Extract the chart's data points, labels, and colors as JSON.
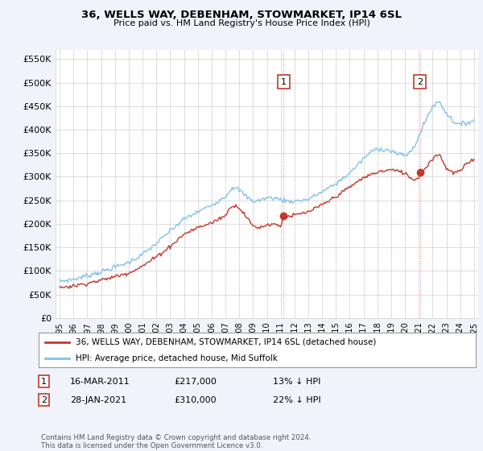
{
  "title": "36, WELLS WAY, DEBENHAM, STOWMARKET, IP14 6SL",
  "subtitle": "Price paid vs. HM Land Registry's House Price Index (HPI)",
  "ylabel_ticks": [
    "£0",
    "£50K",
    "£100K",
    "£150K",
    "£200K",
    "£250K",
    "£300K",
    "£350K",
    "£400K",
    "£450K",
    "£500K",
    "£550K"
  ],
  "ytick_vals": [
    0,
    50000,
    100000,
    150000,
    200000,
    250000,
    300000,
    350000,
    400000,
    450000,
    500000,
    550000
  ],
  "ylim": [
    0,
    570000
  ],
  "xlim_start": 1994.7,
  "xlim_end": 2025.3,
  "xtick_years": [
    1995,
    1996,
    1997,
    1998,
    1999,
    2000,
    2001,
    2002,
    2003,
    2004,
    2005,
    2006,
    2007,
    2008,
    2009,
    2010,
    2011,
    2012,
    2013,
    2014,
    2015,
    2016,
    2017,
    2018,
    2019,
    2020,
    2021,
    2022,
    2023,
    2024,
    2025
  ],
  "hpi_color": "#85c1e8",
  "price_color": "#c0392b",
  "marker1_x": 2011.21,
  "marker1_y": 217000,
  "marker2_x": 2021.08,
  "marker2_y": 310000,
  "vline1_x": 2011.21,
  "vline2_x": 2021.08,
  "legend_label1": "36, WELLS WAY, DEBENHAM, STOWMARKET, IP14 6SL (detached house)",
  "legend_label2": "HPI: Average price, detached house, Mid Suffolk",
  "footnote": "Contains HM Land Registry data © Crown copyright and database right 2024.\nThis data is licensed under the Open Government Licence v3.0.",
  "bg_color": "#f0f4fa",
  "plot_bg": "#ffffff",
  "grid_color": "#d0d0d0",
  "hpi_anchors_x": [
    1995.0,
    1996.0,
    1997.0,
    1998.0,
    1999.0,
    2000.0,
    2001.0,
    2002.0,
    2003.0,
    2004.0,
    2005.0,
    2006.0,
    2007.0,
    2007.5,
    2008.0,
    2008.5,
    2009.0,
    2009.5,
    2010.0,
    2010.5,
    2011.0,
    2011.5,
    2012.0,
    2013.0,
    2014.0,
    2015.0,
    2016.0,
    2017.0,
    2017.5,
    2018.0,
    2018.5,
    2019.0,
    2019.5,
    2020.0,
    2020.5,
    2021.0,
    2021.5,
    2022.0,
    2022.5,
    2023.0,
    2023.5,
    2024.0,
    2024.5,
    2025.0
  ],
  "hpi_anchors_y": [
    78000,
    82000,
    90000,
    98000,
    108000,
    118000,
    135000,
    158000,
    185000,
    210000,
    225000,
    240000,
    258000,
    278000,
    272000,
    258000,
    248000,
    250000,
    255000,
    255000,
    252000,
    248000,
    248000,
    252000,
    268000,
    285000,
    308000,
    338000,
    352000,
    360000,
    358000,
    355000,
    348000,
    345000,
    355000,
    385000,
    420000,
    450000,
    460000,
    435000,
    418000,
    410000,
    415000,
    420000
  ],
  "price_anchors_x": [
    1995.0,
    1996.0,
    1997.0,
    1998.0,
    1999.0,
    2000.0,
    2001.0,
    2002.0,
    2003.0,
    2004.0,
    2005.0,
    2006.0,
    2007.0,
    2007.5,
    2008.0,
    2008.5,
    2009.0,
    2009.5,
    2010.0,
    2010.5,
    2011.0,
    2011.21,
    2011.5,
    2012.0,
    2013.0,
    2014.0,
    2015.0,
    2016.0,
    2017.0,
    2018.0,
    2019.0,
    2020.0,
    2020.5,
    2021.0,
    2021.08,
    2021.5,
    2022.0,
    2022.5,
    2023.0,
    2023.5,
    2024.0,
    2024.5,
    2025.0
  ],
  "price_anchors_y": [
    65000,
    68000,
    74000,
    80000,
    88000,
    96000,
    110000,
    130000,
    152000,
    178000,
    192000,
    202000,
    218000,
    240000,
    235000,
    215000,
    195000,
    192000,
    198000,
    200000,
    195000,
    217000,
    215000,
    218000,
    225000,
    240000,
    258000,
    278000,
    298000,
    310000,
    315000,
    308000,
    295000,
    296000,
    310000,
    318000,
    340000,
    348000,
    318000,
    308000,
    312000,
    328000,
    338000
  ]
}
